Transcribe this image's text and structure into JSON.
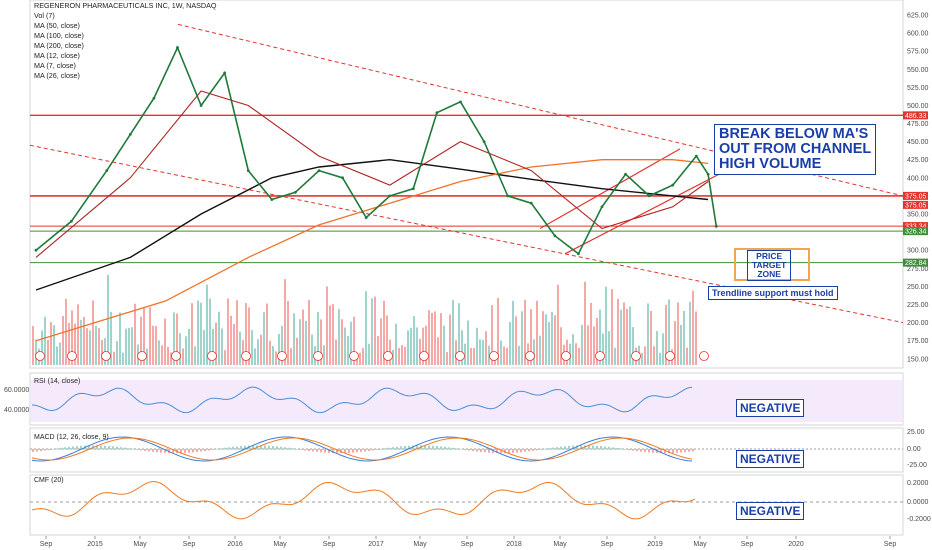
{
  "chart_data": {
    "type": "line",
    "title": "REGENERON PHARMACEUTICALS INC, 1W, NASDAQ",
    "legend": [
      "Vol (7)",
      "MA (50, close)",
      "MA (100, close)",
      "MA (200, close)",
      "MA (12, close)",
      "MA (7, close)",
      "MA (26, close)"
    ],
    "x_ticks": [
      "Sep",
      "2015",
      "May",
      "Sep",
      "2016",
      "May",
      "Sep",
      "2017",
      "May",
      "Sep",
      "2018",
      "May",
      "Sep",
      "2019",
      "May",
      "Sep",
      "2020",
      "Sep"
    ],
    "price_axis": {
      "ylim": [
        140,
        625
      ],
      "ticks": [
        150,
        175,
        200,
        225,
        250,
        275,
        300,
        325,
        350,
        375,
        400,
        425,
        450,
        475,
        500,
        525,
        550,
        575,
        600,
        625
      ],
      "tick_labels": [
        "150.00",
        "175.00",
        "200.00",
        "225.00",
        "250.00",
        "275.00",
        "300.00",
        "325.00",
        "350.00",
        "375.00",
        "400.00",
        "425.00",
        "450.00",
        "475.00",
        "500.00",
        "525.00",
        "550.00",
        "575.00",
        "600.00",
        "625.00"
      ]
    },
    "price_series": [
      {
        "x": "2014-07",
        "y": 300
      },
      {
        "x": "2014-10",
        "y": 340
      },
      {
        "x": "2015-01",
        "y": 410
      },
      {
        "x": "2015-03",
        "y": 460
      },
      {
        "x": "2015-05",
        "y": 510
      },
      {
        "x": "2015-07",
        "y": 580
      },
      {
        "x": "2015-09",
        "y": 500
      },
      {
        "x": "2015-11",
        "y": 545
      },
      {
        "x": "2016-01",
        "y": 410
      },
      {
        "x": "2016-03",
        "y": 370
      },
      {
        "x": "2016-05",
        "y": 380
      },
      {
        "x": "2016-07",
        "y": 410
      },
      {
        "x": "2016-09",
        "y": 400
      },
      {
        "x": "2016-11",
        "y": 345
      },
      {
        "x": "2017-01",
        "y": 375
      },
      {
        "x": "2017-03",
        "y": 385
      },
      {
        "x": "2017-05",
        "y": 490
      },
      {
        "x": "2017-07",
        "y": 505
      },
      {
        "x": "2017-09",
        "y": 450
      },
      {
        "x": "2017-11",
        "y": 375
      },
      {
        "x": "2018-01",
        "y": 365
      },
      {
        "x": "2018-03",
        "y": 320
      },
      {
        "x": "2018-05",
        "y": 295
      },
      {
        "x": "2018-07",
        "y": 360
      },
      {
        "x": "2018-09",
        "y": 405
      },
      {
        "x": "2018-11",
        "y": 375
      },
      {
        "x": "2019-01",
        "y": 390
      },
      {
        "x": "2019-03",
        "y": 430
      },
      {
        "x": "2019-04",
        "y": 405
      },
      {
        "x": "2019-04-22",
        "y": 333
      }
    ],
    "horizontal_levels": [
      {
        "value": 486.33,
        "label": "486.33",
        "color": "#e3342f"
      },
      {
        "value": 375.05,
        "label": "375.05",
        "color": "#e3342f"
      },
      {
        "value": 375.05,
        "label": "375.05",
        "color": "#e3342f"
      },
      {
        "value": 333.34,
        "label": "333.34",
        "color": "#e3342f"
      },
      {
        "value": 326.34,
        "label": "326.34",
        "color": "#3f8f3a"
      },
      {
        "value": 282.84,
        "label": "282.84",
        "color": "#3f8f3a"
      }
    ],
    "rsi": {
      "label": "RSI (14, close)",
      "tick_labels": [
        "60.0000",
        "40.0000"
      ]
    },
    "macd": {
      "label": "MACD (12, 26, close, 9)",
      "tick_labels": [
        "25.00",
        "0.00",
        "-25.00"
      ]
    },
    "cmf": {
      "label": "CMF (20)",
      "tick_labels": [
        "0.2000",
        "0.0000",
        "-0.2000"
      ]
    },
    "annotations": {
      "breakdown": [
        "BREAK BELOW MA'S",
        "OUT FROM CHANNEL",
        "HIGH VOLUME"
      ],
      "target": [
        "PRICE",
        "TARGET",
        "ZONE"
      ],
      "trendline": "Trendline support must hold",
      "rsi_status": "NEGATIVE",
      "macd_status": "NEGATIVE",
      "cmf_status": "NEGATIVE"
    },
    "colors": {
      "up": "#26a69a",
      "down": "#ef5350",
      "level_red": "#e3342f",
      "level_green": "#3f8f3a",
      "annotation": "#1a3ea8",
      "rsi_band": "#f2e3fb",
      "cmf": "#f07b24"
    }
  }
}
